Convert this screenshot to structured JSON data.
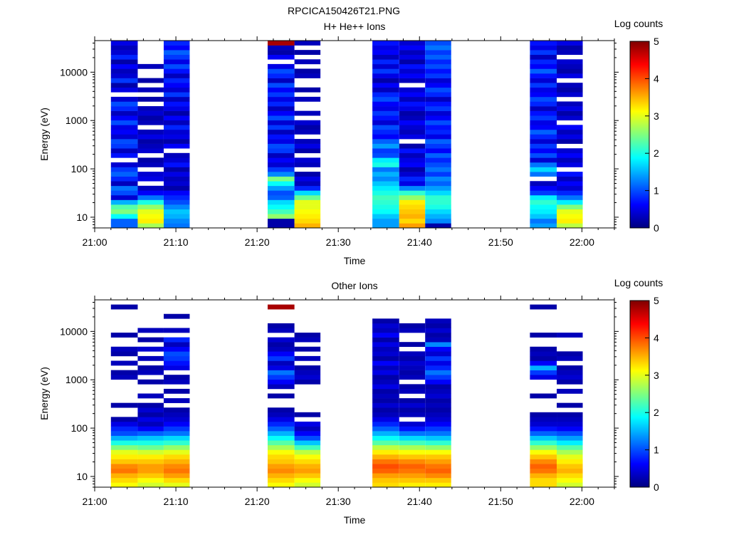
{
  "file_title": "RPCICA150426T21.PNG",
  "colormap": [
    "#00007f",
    "#0000ff",
    "#007fff",
    "#00ffff",
    "#7fff7f",
    "#ffff00",
    "#ff7f00",
    "#ff0000",
    "#7f0000"
  ],
  "chart_data": [
    {
      "type": "heatmap",
      "title": "H+ He++ Ions",
      "xlabel": "Time",
      "ylabel": "Energy (eV)",
      "colorbar_label": "Log counts",
      "colorbar_ticks": [
        "0",
        "1",
        "2",
        "3",
        "4",
        "5"
      ],
      "clim": [
        0,
        5
      ],
      "xlim_minutes": [
        0,
        64
      ],
      "xticks": [
        {
          "m": 0,
          "label": "21:00"
        },
        {
          "m": 10,
          "label": "21:10"
        },
        {
          "m": 20,
          "label": "21:20"
        },
        {
          "m": 30,
          "label": "21:30"
        },
        {
          "m": 40,
          "label": "21:40"
        },
        {
          "m": 50,
          "label": "21:50"
        },
        {
          "m": 60,
          "label": "22:00"
        }
      ],
      "yscale": "log",
      "ylim": [
        6,
        45000
      ],
      "yticks": [
        {
          "v": 10,
          "label": "10"
        },
        {
          "v": 100,
          "label": "100"
        },
        {
          "v": 1000,
          "label": "1000"
        },
        {
          "v": 10000,
          "label": "10000"
        }
      ],
      "time_columns": [
        {
          "start_min": 2,
          "end_min": 5.3,
          "levels": [
            1.1,
            1.1,
            1.9,
            2.5,
            2.3,
            1.5,
            0.4,
            1.0,
            1.2,
            0.3,
            0.8,
            1.1,
            0.9,
            0.4,
            null,
            0.7,
            0.3,
            0.9,
            1.0,
            0.4,
            0.6,
            0.5,
            1.0,
            0.6,
            0.3,
            0.8,
            1.0,
            0.4,
            null,
            0.5,
            0.2,
            0.9,
            0.4,
            0.3,
            0.6,
            0.2,
            0.8,
            0.4,
            0.3,
            0.5
          ]
        },
        {
          "start_min": 5.3,
          "end_min": 8.5,
          "levels": [
            2.7,
            3.2,
            3.1,
            3.0,
            2.6,
            2.0,
            1.2,
            0.6,
            0.3,
            null,
            0.5,
            0.4,
            null,
            0.3,
            0.2,
            null,
            0.4,
            0.3,
            0.2,
            0.5,
            0.3,
            null,
            0.3,
            0.2,
            0.4,
            0.3,
            null,
            0.2,
            null,
            0.3,
            null,
            0.2,
            null,
            null,
            0.3,
            null,
            null,
            null,
            null,
            null
          ]
        },
        {
          "start_min": 8.5,
          "end_min": 11.7,
          "levels": [
            1.2,
            1.3,
            1.5,
            1.6,
            1.3,
            1.0,
            0.8,
            0.6,
            0.2,
            0.4,
            0.3,
            0.5,
            0.2,
            0.7,
            0.4,
            0.3,
            null,
            0.6,
            0.2,
            0.5,
            0.4,
            0.8,
            0.3,
            0.6,
            0.2,
            0.5,
            0.7,
            0.3,
            0.9,
            0.4,
            0.6,
            0.8,
            0.3,
            0.7,
            1.0,
            0.5,
            0.9,
            1.1,
            0.6,
            0.8
          ]
        },
        {
          "start_min": 21.3,
          "end_min": 24.6,
          "levels": [
            0.2,
            0.2,
            2.6,
            2.2,
            1.9,
            1.7,
            1.1,
            1.0,
            1.4,
            1.9,
            2.5,
            1.3,
            0.9,
            0.4,
            0.6,
            0.3,
            0.9,
            1.0,
            0.5,
            0.7,
            0.3,
            0.9,
            0.4,
            1.0,
            0.6,
            0.3,
            0.8,
            0.5,
            0.9,
            0.6,
            1.0,
            0.3,
            0.8,
            1.0,
            0.5,
            null,
            0.6,
            0.2,
            0.3,
            4.8
          ]
        },
        {
          "start_min": 24.6,
          "end_min": 27.8,
          "levels": [
            3.5,
            3.3,
            3.2,
            3.1,
            3.0,
            3.0,
            2.4,
            1.7,
            0.8,
            0.3,
            0.5,
            0.2,
            null,
            0.3,
            0.4,
            null,
            0.2,
            0.5,
            0.3,
            null,
            0.3,
            0.2,
            0.4,
            null,
            0.3,
            null,
            null,
            0.3,
            null,
            0.2,
            null,
            null,
            0.3,
            0.2,
            null,
            0.3,
            null,
            0.2,
            null,
            0.3
          ]
        },
        {
          "start_min": 34.2,
          "end_min": 37.5,
          "levels": [
            1.4,
            1.4,
            1.6,
            1.9,
            2.0,
            2.1,
            2.2,
            2.0,
            1.8,
            1.6,
            1.3,
            1.5,
            1.2,
            2.0,
            1.8,
            1.0,
            0.9,
            1.4,
            1.1,
            0.6,
            0.8,
            1.0,
            0.4,
            0.7,
            0.9,
            0.5,
            0.6,
            1.0,
            0.8,
            0.3,
            0.6,
            0.2,
            0.5,
            0.9,
            0.4,
            0.8,
            0.3,
            0.6,
            0.5,
            0.7
          ]
        },
        {
          "start_min": 37.5,
          "end_min": 40.7,
          "levels": [
            3.6,
            3.3,
            3.5,
            3.4,
            3.3,
            3.2,
            2.6,
            2.1,
            1.3,
            0.5,
            0.8,
            0.4,
            0.2,
            0.6,
            0.5,
            0.3,
            0.7,
            0.2,
            null,
            0.5,
            0.3,
            0.4,
            0.6,
            0.3,
            0.2,
            0.5,
            0.7,
            0.3,
            0.6,
            0.4,
            null,
            0.3,
            0.6,
            0.4,
            0.7,
            0.2,
            0.5,
            0.3,
            0.6,
            0.4
          ]
        },
        {
          "start_min": 40.7,
          "end_min": 43.9,
          "levels": [
            0.2,
            1.3,
            1.5,
            1.7,
            2.0,
            2.1,
            2.1,
            1.7,
            1.4,
            1.1,
            1.3,
            0.9,
            1.2,
            1.0,
            0.8,
            1.1,
            0.6,
            0.9,
            1.1,
            0.5,
            0.8,
            0.7,
            1.0,
            0.6,
            0.4,
            0.9,
            0.7,
            0.3,
            0.8,
            1.0,
            0.6,
            0.4,
            0.9,
            0.7,
            1.0,
            0.8,
            1.1,
            0.9,
            1.2,
            1.0
          ]
        },
        {
          "start_min": 53.6,
          "end_min": 56.9,
          "levels": [
            1.4,
            1.2,
            1.6,
            1.8,
            1.9,
            2.1,
            1.8,
            0.9,
            0.6,
            0.3,
            null,
            1.2,
            1.7,
            1.2,
            0.4,
            1.0,
            0.6,
            0.9,
            0.4,
            0.8,
            1.1,
            0.6,
            0.5,
            0.9,
            0.7,
            0.3,
            0.8,
            1.0,
            0.6,
            0.5,
            0.9,
            0.4,
            0.7,
            1.1,
            0.6,
            0.8,
            0.3,
            0.9,
            0.5,
            0.7
          ]
        },
        {
          "start_min": 56.9,
          "end_min": 60.1,
          "levels": [
            2.8,
            3.2,
            3.1,
            3.0,
            2.5,
            1.8,
            1.2,
            0.8,
            0.4,
            0.6,
            0.3,
            0.7,
            null,
            0.5,
            0.3,
            0.6,
            0.4,
            null,
            0.2,
            0.5,
            0.3,
            0.6,
            null,
            0.4,
            0.2,
            0.5,
            0.3,
            null,
            0.4,
            0.2,
            0.3,
            null,
            0.5,
            0.2,
            0.3,
            0.4,
            null,
            0.3,
            0.2,
            0.5
          ]
        }
      ]
    },
    {
      "type": "heatmap",
      "title": "Other Ions",
      "xlabel": "Time",
      "ylabel": "Energy (eV)",
      "colorbar_label": "Log counts",
      "colorbar_ticks": [
        "0",
        "1",
        "2",
        "3",
        "4",
        "5"
      ],
      "clim": [
        0,
        5
      ],
      "xlim_minutes": [
        0,
        64
      ],
      "xticks": [
        {
          "m": 0,
          "label": "21:00"
        },
        {
          "m": 10,
          "label": "21:10"
        },
        {
          "m": 20,
          "label": "21:20"
        },
        {
          "m": 30,
          "label": "21:30"
        },
        {
          "m": 40,
          "label": "21:40"
        },
        {
          "m": 50,
          "label": "21:50"
        },
        {
          "m": 60,
          "label": "22:00"
        }
      ],
      "yscale": "log",
      "ylim": [
        6,
        45000
      ],
      "yticks": [
        {
          "v": 10,
          "label": "10"
        },
        {
          "v": 100,
          "label": "100"
        },
        {
          "v": 1000,
          "label": "1000"
        },
        {
          "v": 10000,
          "label": "10000"
        }
      ],
      "time_columns": [
        {
          "start_min": 2,
          "end_min": 5.3,
          "levels": [
            3.1,
            3.3,
            3.5,
            3.8,
            3.7,
            3.4,
            3.2,
            3.0,
            2.5,
            2.0,
            1.5,
            1.0,
            0.8,
            0.5,
            0.2,
            null,
            null,
            0.2,
            null,
            null,
            null,
            null,
            null,
            0.3,
            0.2,
            null,
            0.3,
            null,
            0.2,
            0.3,
            null,
            null,
            0.2,
            null,
            null,
            null,
            null,
            null,
            0.2,
            null
          ]
        },
        {
          "start_min": 5.3,
          "end_min": 8.5,
          "levels": [
            2.9,
            3.1,
            3.4,
            3.6,
            3.6,
            3.4,
            3.2,
            2.9,
            2.4,
            2.0,
            1.6,
            1.1,
            0.6,
            0.3,
            0.5,
            0.2,
            0.4,
            0.2,
            null,
            0.3,
            null,
            null,
            0.2,
            null,
            0.3,
            0.2,
            null,
            0.3,
            null,
            0.4,
            null,
            0.2,
            null,
            0.3,
            null,
            null,
            null,
            null,
            null,
            null
          ]
        },
        {
          "start_min": 8.5,
          "end_min": 11.7,
          "levels": [
            3.0,
            3.3,
            3.6,
            3.8,
            3.7,
            3.5,
            3.3,
            3.0,
            2.6,
            2.1,
            1.7,
            1.2,
            0.9,
            0.6,
            0.4,
            0.3,
            0.2,
            null,
            0.3,
            null,
            0.2,
            null,
            0.3,
            0.2,
            null,
            0.5,
            0.7,
            0.9,
            1.0,
            0.6,
            0.3,
            0.8,
            null,
            0.3,
            null,
            null,
            0.2,
            null,
            null,
            null
          ]
        },
        {
          "start_min": 21.3,
          "end_min": 24.6,
          "levels": [
            3.1,
            3.3,
            3.5,
            3.7,
            3.6,
            3.4,
            3.3,
            3.1,
            2.7,
            2.3,
            1.9,
            1.5,
            1.1,
            0.8,
            0.5,
            0.3,
            0.2,
            null,
            null,
            0.2,
            null,
            0.3,
            0.6,
            0.9,
            1.2,
            0.5,
            0.3,
            0.9,
            0.6,
            0.3,
            0.2,
            0.4,
            null,
            0.3,
            0.2,
            null,
            null,
            null,
            4.8,
            null
          ]
        },
        {
          "start_min": 24.6,
          "end_min": 27.8,
          "levels": [
            2.9,
            3.1,
            3.4,
            3.6,
            3.5,
            3.3,
            3.1,
            2.8,
            2.2,
            1.6,
            1.0,
            0.6,
            0.3,
            0.5,
            null,
            0.2,
            null,
            null,
            null,
            null,
            null,
            null,
            0.2,
            0.4,
            0.3,
            0.2,
            null,
            0.3,
            null,
            0.2,
            null,
            0.3,
            0.2,
            null,
            null,
            null,
            null,
            null,
            null,
            null
          ]
        },
        {
          "start_min": 34.2,
          "end_min": 37.5,
          "levels": [
            3.3,
            3.4,
            3.6,
            3.9,
            4.0,
            3.8,
            3.5,
            3.2,
            2.8,
            2.3,
            1.9,
            1.5,
            1.1,
            0.8,
            0.5,
            0.3,
            0.2,
            0.4,
            0.2,
            0.3,
            0.2,
            0.5,
            0.3,
            0.2,
            0.5,
            0.3,
            0.6,
            0.2,
            0.4,
            0.3,
            0.5,
            0.2,
            0.6,
            0.3,
            0.4,
            0.2,
            null,
            null,
            null,
            null
          ]
        },
        {
          "start_min": 37.5,
          "end_min": 40.7,
          "levels": [
            3.2,
            3.4,
            3.6,
            3.8,
            3.9,
            3.7,
            3.4,
            3.1,
            2.7,
            2.2,
            1.7,
            1.2,
            0.7,
            0.4,
            null,
            0.3,
            0.2,
            0.4,
            0.2,
            null,
            0.3,
            0.2,
            null,
            0.3,
            0.2,
            0.3,
            0.4,
            0.2,
            0.3,
            null,
            0.2,
            null,
            null,
            0.3,
            0.2,
            null,
            null,
            null,
            null,
            null
          ]
        },
        {
          "start_min": 40.7,
          "end_min": 43.9,
          "levels": [
            3.2,
            3.4,
            3.7,
            3.9,
            3.8,
            3.6,
            3.4,
            3.1,
            2.6,
            2.1,
            1.6,
            1.2,
            0.9,
            0.6,
            0.4,
            0.3,
            0.2,
            0.3,
            0.2,
            0.4,
            0.3,
            0.2,
            0.6,
            0.9,
            1.2,
            0.8,
            0.5,
            0.9,
            0.4,
            0.6,
            1.3,
            0.3,
            0.2,
            0.4,
            0.2,
            0.3,
            null,
            null,
            null,
            null
          ]
        },
        {
          "start_min": 53.6,
          "end_min": 56.9,
          "levels": [
            3.3,
            3.3,
            3.5,
            3.8,
            3.9,
            3.7,
            3.4,
            3.1,
            2.6,
            2.1,
            1.6,
            1.1,
            0.7,
            0.4,
            0.3,
            0.2,
            null,
            null,
            null,
            0.2,
            null,
            null,
            null,
            0.5,
            0.9,
            1.5,
            0.6,
            0.2,
            0.3,
            0.2,
            null,
            null,
            0.2,
            null,
            null,
            null,
            null,
            null,
            0.2,
            null
          ]
        },
        {
          "start_min": 56.9,
          "end_min": 60.1,
          "levels": [
            2.9,
            3.1,
            3.3,
            3.5,
            3.4,
            3.2,
            3.0,
            2.7,
            2.3,
            1.8,
            1.4,
            1.0,
            0.6,
            0.4,
            0.3,
            0.2,
            null,
            0.2,
            null,
            null,
            0.3,
            null,
            0.2,
            0.4,
            0.3,
            0.2,
            null,
            0.3,
            0.2,
            null,
            null,
            null,
            0.3,
            null,
            null,
            null,
            null,
            null,
            null,
            null
          ]
        }
      ]
    }
  ]
}
